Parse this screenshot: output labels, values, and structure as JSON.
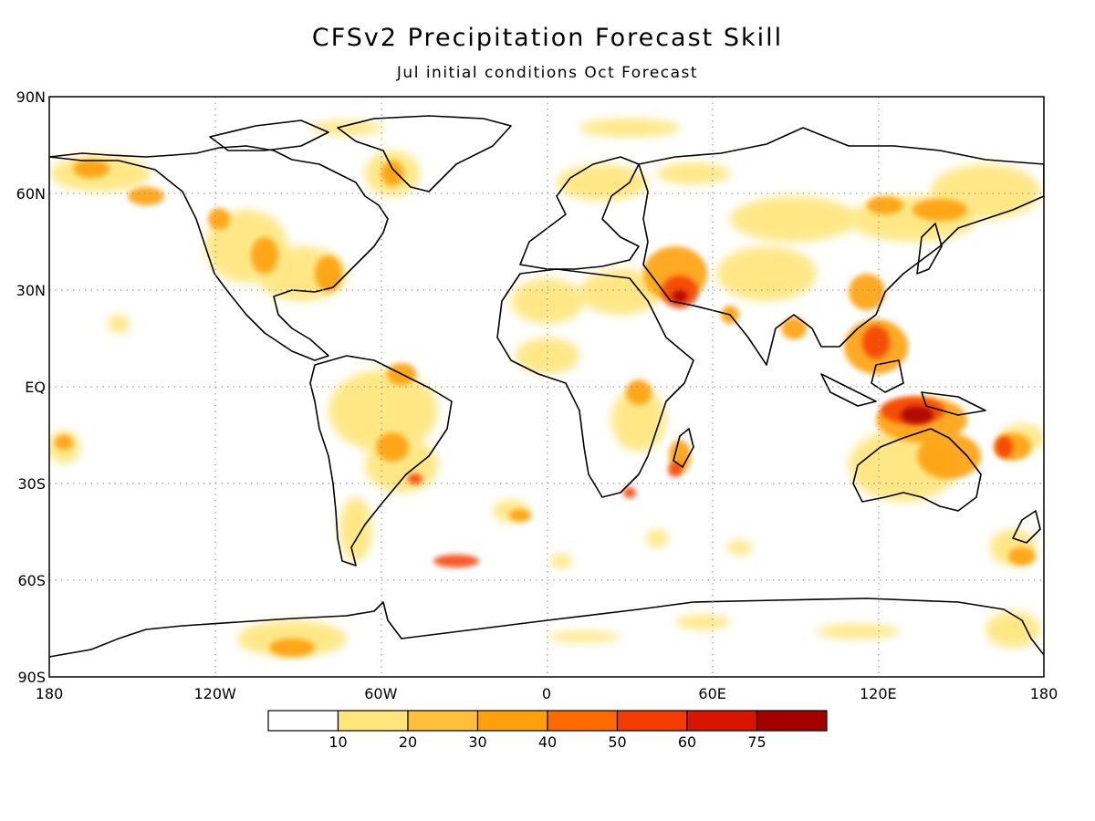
{
  "header": {
    "title": "CFSv2 Precipitation Forecast Skill",
    "subtitle": "Jul initial conditions  Oct Forecast"
  },
  "map": {
    "lat_labels": [
      {
        "lat": 90,
        "label": "90N"
      },
      {
        "lat": 60,
        "label": "60N"
      },
      {
        "lat": 30,
        "label": "30N"
      },
      {
        "lat": 0,
        "label": "EQ"
      },
      {
        "lat": -30,
        "label": "30S"
      },
      {
        "lat": -60,
        "label": "60S"
      },
      {
        "lat": -90,
        "label": "90S"
      }
    ],
    "lon_labels": [
      {
        "lon": 0,
        "label": "180"
      },
      {
        "lon": 60,
        "label": "120W"
      },
      {
        "lon": 120,
        "label": "60W"
      },
      {
        "lon": 180,
        "label": "0"
      },
      {
        "lon": 240,
        "label": "60E"
      },
      {
        "lon": 300,
        "label": "120E"
      },
      {
        "lon": 360,
        "label": "180"
      }
    ]
  },
  "colorbar": {
    "labels": [
      "10",
      "20",
      "30",
      "40",
      "50",
      "60",
      "75"
    ],
    "colors": [
      "#ffffff",
      "#ffe57a",
      "#ffbf3a",
      "#ffa00a",
      "#ff6a00",
      "#f53c00",
      "#d91500",
      "#a50000"
    ]
  }
}
